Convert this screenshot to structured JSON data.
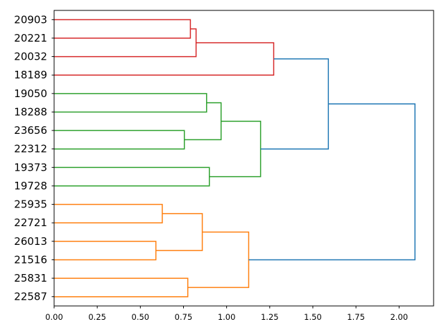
{
  "chart_data": {
    "type": "dendrogram",
    "orientation": "left",
    "title": "",
    "xlabel": "",
    "ylabel": "",
    "xlim": [
      0,
      2.2
    ],
    "x_ticks": [
      0,
      0.25,
      0.5,
      0.75,
      1.0,
      1.25,
      1.5,
      1.75,
      2.0
    ],
    "x_tick_labels": [
      "0.00",
      "0.25",
      "0.50",
      "0.75",
      "1.00",
      "1.25",
      "1.50",
      "1.75",
      "2.00"
    ],
    "grid": false,
    "leaves": [
      "20903",
      "20221",
      "20032",
      "18189",
      "19050",
      "18288",
      "23656",
      "22312",
      "19373",
      "19728",
      "25935",
      "22721",
      "26013",
      "21516",
      "25831",
      "22587"
    ],
    "colors": {
      "red": "#d62728",
      "green": "#2ca02c",
      "orange": "#ff7f0e",
      "blue": "#1f77b4"
    },
    "merges": [
      {
        "id": "m0",
        "left": "L0",
        "right": "L1",
        "height": 0.79,
        "color": "red"
      },
      {
        "id": "m1",
        "left": "m0",
        "right": "L2",
        "height": 0.823,
        "color": "red"
      },
      {
        "id": "m2",
        "left": "m1",
        "right": "L3",
        "height": 1.273,
        "color": "red"
      },
      {
        "id": "m3",
        "left": "L4",
        "right": "L5",
        "height": 0.884,
        "color": "green"
      },
      {
        "id": "m4",
        "left": "L6",
        "right": "L7",
        "height": 0.755,
        "color": "green"
      },
      {
        "id": "m5",
        "left": "m3",
        "right": "m4",
        "height": 0.968,
        "color": "green"
      },
      {
        "id": "m6",
        "left": "L8",
        "right": "L9",
        "height": 0.9,
        "color": "green"
      },
      {
        "id": "m7",
        "left": "m5",
        "right": "m6",
        "height": 1.197,
        "color": "green"
      },
      {
        "id": "m8",
        "left": "m2",
        "right": "m7",
        "height": 1.59,
        "color": "blue"
      },
      {
        "id": "m9",
        "left": "L10",
        "right": "L11",
        "height": 0.627,
        "color": "orange"
      },
      {
        "id": "m10",
        "left": "L12",
        "right": "L13",
        "height": 0.59,
        "color": "orange"
      },
      {
        "id": "m11",
        "left": "m9",
        "right": "m10",
        "height": 0.859,
        "color": "orange"
      },
      {
        "id": "m12",
        "left": "L14",
        "right": "L15",
        "height": 0.775,
        "color": "orange"
      },
      {
        "id": "m13",
        "left": "m11",
        "right": "m12",
        "height": 1.128,
        "color": "orange"
      },
      {
        "id": "m14",
        "left": "m8",
        "right": "m13",
        "height": 2.092,
        "color": "blue"
      }
    ]
  }
}
